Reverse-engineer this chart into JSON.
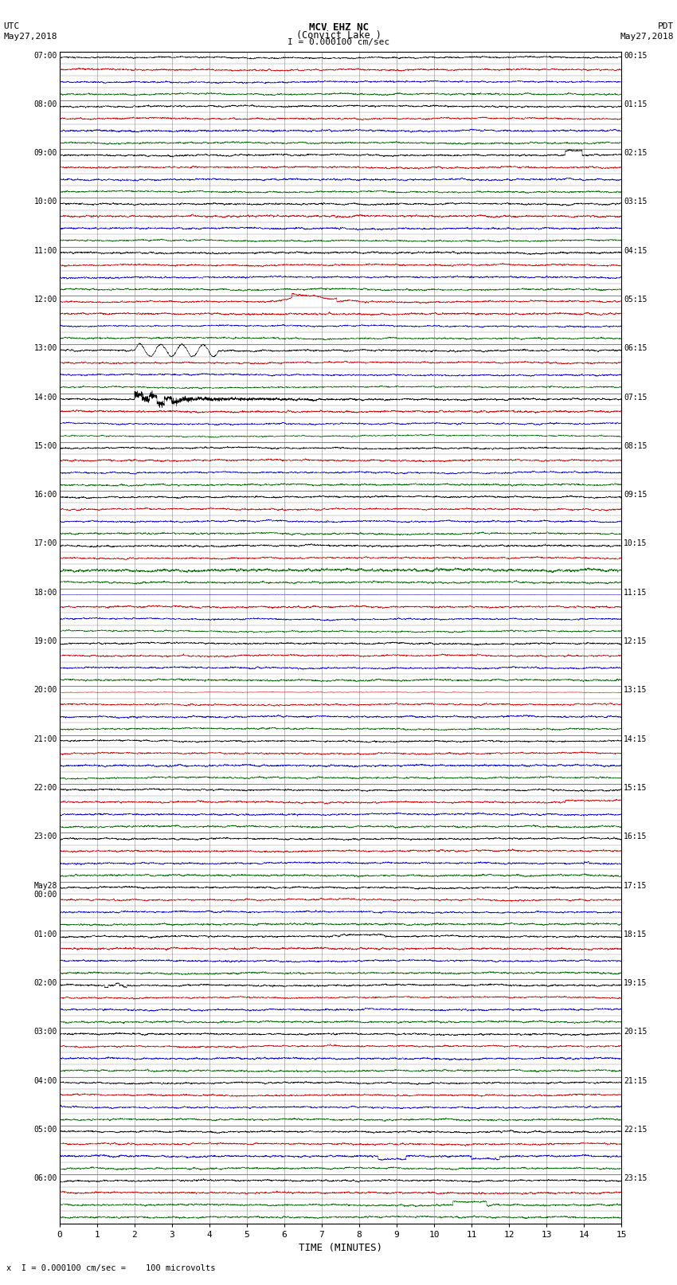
{
  "title_line1": "MCV EHZ NC",
  "title_line2": "(Convict Lake )",
  "scale_label": "I = 0.000100 cm/sec",
  "bottom_label": "x  I = 0.000100 cm/sec =    100 microvolts",
  "xlabel": "TIME (MINUTES)",
  "utc_label": "UTC\nMay27,2018",
  "pdt_label": "PDT\nMay27,2018",
  "utc_times": [
    "07:00",
    "",
    "",
    "",
    "08:00",
    "",
    "",
    "",
    "09:00",
    "",
    "",
    "",
    "10:00",
    "",
    "",
    "",
    "11:00",
    "",
    "",
    "",
    "12:00",
    "",
    "",
    "",
    "13:00",
    "",
    "",
    "",
    "14:00",
    "",
    "",
    "",
    "15:00",
    "",
    "",
    "",
    "16:00",
    "",
    "",
    "",
    "17:00",
    "",
    "",
    "",
    "18:00",
    "",
    "",
    "",
    "19:00",
    "",
    "",
    "",
    "20:00",
    "",
    "",
    "",
    "21:00",
    "",
    "",
    "",
    "22:00",
    "",
    "",
    "",
    "23:00",
    "",
    "",
    "",
    "May28\n00:00",
    "",
    "",
    "",
    "01:00",
    "",
    "",
    "",
    "02:00",
    "",
    "",
    "",
    "03:00",
    "",
    "",
    "",
    "04:00",
    "",
    "",
    "",
    "05:00",
    "",
    "",
    "",
    "06:00",
    "",
    ""
  ],
  "pdt_times": [
    "00:15",
    "",
    "",
    "",
    "01:15",
    "",
    "",
    "",
    "02:15",
    "",
    "",
    "",
    "03:15",
    "",
    "",
    "",
    "04:15",
    "",
    "",
    "",
    "05:15",
    "",
    "",
    "",
    "06:15",
    "",
    "",
    "",
    "07:15",
    "",
    "",
    "",
    "08:15",
    "",
    "",
    "",
    "09:15",
    "",
    "",
    "",
    "10:15",
    "",
    "",
    "",
    "11:15",
    "",
    "",
    "",
    "12:15",
    "",
    "",
    "",
    "13:15",
    "",
    "",
    "",
    "14:15",
    "",
    "",
    "",
    "15:15",
    "",
    "",
    "",
    "16:15",
    "",
    "",
    "",
    "17:15",
    "",
    "",
    "",
    "18:15",
    "",
    "",
    "",
    "19:15",
    "",
    "",
    "",
    "20:15",
    "",
    "",
    "",
    "21:15",
    "",
    "",
    "",
    "22:15",
    "",
    "",
    "",
    "23:15",
    "",
    ""
  ],
  "n_hours": 24,
  "sub_traces": 4,
  "n_minutes": 15,
  "background_color": "#ffffff",
  "grid_color": "#888888",
  "figure_width": 8.5,
  "figure_height": 16.13,
  "dpi": 100,
  "sub_trace_colors": [
    "#000000",
    "#cc0000",
    "#0000cc",
    "#006600"
  ],
  "hour_labels_utc": [
    "07:00",
    "08:00",
    "09:00",
    "10:00",
    "11:00",
    "12:00",
    "13:00",
    "14:00",
    "15:00",
    "16:00",
    "17:00",
    "18:00",
    "19:00",
    "20:00",
    "21:00",
    "22:00",
    "23:00",
    "May28\n00:00",
    "01:00",
    "02:00",
    "03:00",
    "04:00",
    "05:00",
    "06:00"
  ],
  "hour_labels_pdt": [
    "00:15",
    "01:15",
    "02:15",
    "03:15",
    "04:15",
    "05:15",
    "06:15",
    "07:15",
    "08:15",
    "09:15",
    "10:15",
    "11:15",
    "12:15",
    "13:15",
    "14:15",
    "15:15",
    "16:15",
    "17:15",
    "18:15",
    "19:15",
    "20:15",
    "21:15",
    "22:15",
    "23:15"
  ]
}
